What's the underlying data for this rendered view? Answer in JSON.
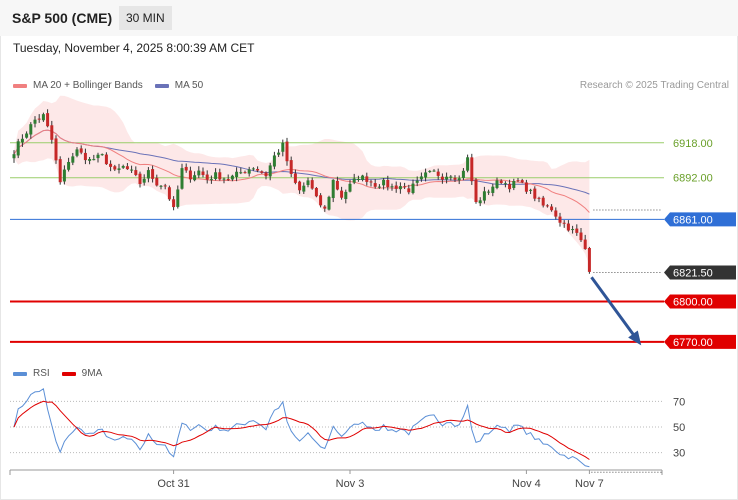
{
  "header": {
    "symbol": "S&P 500 (CME)",
    "interval": "30 MIN"
  },
  "datetime": "Tuesday, November 4, 2025 8:00:39 AM CET",
  "credit": "Research © 2025 Trading Central",
  "colors": {
    "up": "#2e7d32",
    "down": "#c62828",
    "ma20": "#f08080",
    "band": "#fde2e2",
    "ma50": "#6a72b8",
    "resistance": "#9acd6a",
    "pivot": "#2f6fd6",
    "support": "#e00000",
    "last": "#333333",
    "arrow": "#2f5597",
    "rsi": "#5b8fd6",
    "rsi_ma": "#e00000"
  },
  "chart_data": [
    {
      "type": "candlestick",
      "name": "price",
      "ylim": [
        6755,
        6955
      ],
      "x_count": 150,
      "x_ticks": [
        {
          "index": 38,
          "label": "Oct 31"
        },
        {
          "index": 80,
          "label": "Nov 3"
        },
        {
          "index": 122,
          "label": "Nov 4"
        },
        {
          "index": 137,
          "label": "Nov 7"
        }
      ],
      "legend": [
        "MA 20 + Bollinger Bands",
        "MA 50"
      ],
      "close_path": [
        [
          0,
          6912
        ],
        [
          2,
          6922
        ],
        [
          5,
          6935
        ],
        [
          7,
          6938
        ],
        [
          9,
          6920
        ],
        [
          11,
          6888
        ],
        [
          13,
          6905
        ],
        [
          15,
          6912
        ],
        [
          18,
          6905
        ],
        [
          21,
          6908
        ],
        [
          24,
          6896
        ],
        [
          26,
          6900
        ],
        [
          28,
          6896
        ],
        [
          30,
          6888
        ],
        [
          32,
          6896
        ],
        [
          34,
          6888
        ],
        [
          36,
          6886
        ],
        [
          38,
          6868
        ],
        [
          40,
          6898
        ],
        [
          42,
          6893
        ],
        [
          44,
          6897
        ],
        [
          46,
          6891
        ],
        [
          48,
          6894
        ],
        [
          51,
          6891
        ],
        [
          54,
          6896
        ],
        [
          57,
          6900
        ],
        [
          60,
          6894
        ],
        [
          62,
          6908
        ],
        [
          64,
          6916
        ],
        [
          66,
          6893
        ],
        [
          68,
          6882
        ],
        [
          70,
          6890
        ],
        [
          72,
          6876
        ],
        [
          74,
          6868
        ],
        [
          76,
          6890
        ],
        [
          78,
          6878
        ],
        [
          80,
          6886
        ],
        [
          82,
          6893
        ],
        [
          84,
          6891
        ],
        [
          86,
          6887
        ],
        [
          88,
          6888
        ],
        [
          90,
          6885
        ],
        [
          92,
          6886
        ],
        [
          94,
          6883
        ],
        [
          96,
          6888
        ],
        [
          98,
          6894
        ],
        [
          100,
          6896
        ],
        [
          102,
          6893
        ],
        [
          104,
          6895
        ],
        [
          106,
          6891
        ],
        [
          108,
          6906
        ],
        [
          110,
          6873
        ],
        [
          112,
          6880
        ],
        [
          114,
          6886
        ],
        [
          116,
          6890
        ],
        [
          118,
          6886
        ],
        [
          120,
          6889
        ],
        [
          122,
          6884
        ],
        [
          124,
          6878
        ],
        [
          126,
          6871
        ],
        [
          128,
          6869
        ],
        [
          130,
          6860
        ],
        [
          132,
          6855
        ],
        [
          134,
          6850
        ],
        [
          136,
          6839
        ],
        [
          137,
          6822
        ]
      ],
      "levels": [
        {
          "kind": "resistance",
          "value": 6918,
          "label": "6918.00"
        },
        {
          "kind": "resistance",
          "value": 6892,
          "label": "6892.00"
        },
        {
          "kind": "pivot",
          "value": 6861,
          "label": "6861.00"
        },
        {
          "kind": "last",
          "value": 6821.5,
          "label": "6821.50"
        },
        {
          "kind": "support",
          "value": 6800,
          "label": "6800.00"
        },
        {
          "kind": "support",
          "value": 6770,
          "label": "6770.00"
        }
      ],
      "arrow": {
        "from": [
          137.5,
          6818
        ],
        "to": [
          148.5,
          6771
        ]
      }
    },
    {
      "type": "line",
      "name": "rsi",
      "ylim": [
        18,
        82
      ],
      "legend": [
        "RSI",
        "9MA"
      ],
      "y_ticks": [
        70,
        50,
        30
      ],
      "series": [
        {
          "name": "RSI",
          "key": "rsi"
        },
        {
          "name": "9MA",
          "key": "rsi_ma"
        }
      ]
    }
  ]
}
